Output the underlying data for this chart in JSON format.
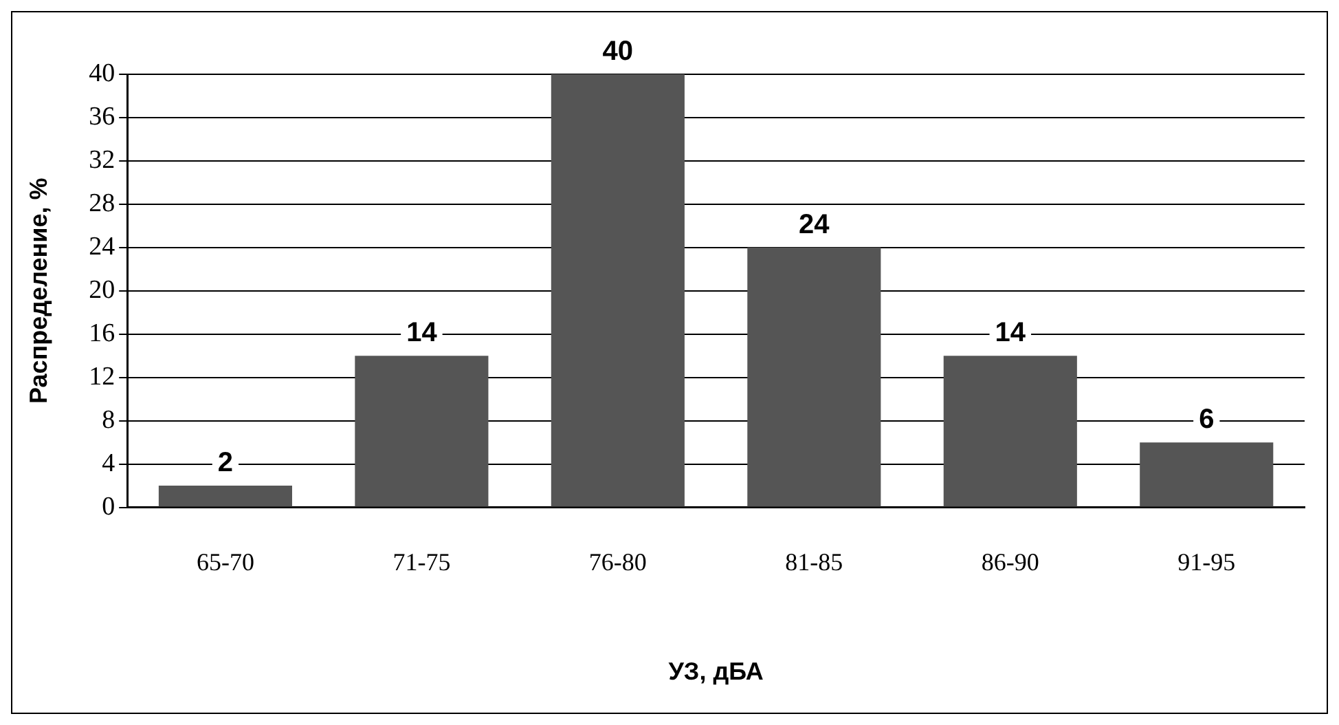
{
  "chart_data": {
    "type": "bar",
    "xlabel": "УЗ, дБА",
    "ylabel": "Распределение, %",
    "categories": [
      "65-70",
      "71-75",
      "76-80",
      "81-85",
      "86-90",
      "91-95"
    ],
    "values": [
      2,
      14,
      40,
      24,
      14,
      6
    ],
    "color": "#555555",
    "ylim": [
      0,
      40
    ],
    "yticks": [
      0,
      4,
      8,
      12,
      16,
      20,
      24,
      28,
      32,
      36,
      40
    ],
    "grid": "y",
    "data_labels": true,
    "legend": false
  }
}
